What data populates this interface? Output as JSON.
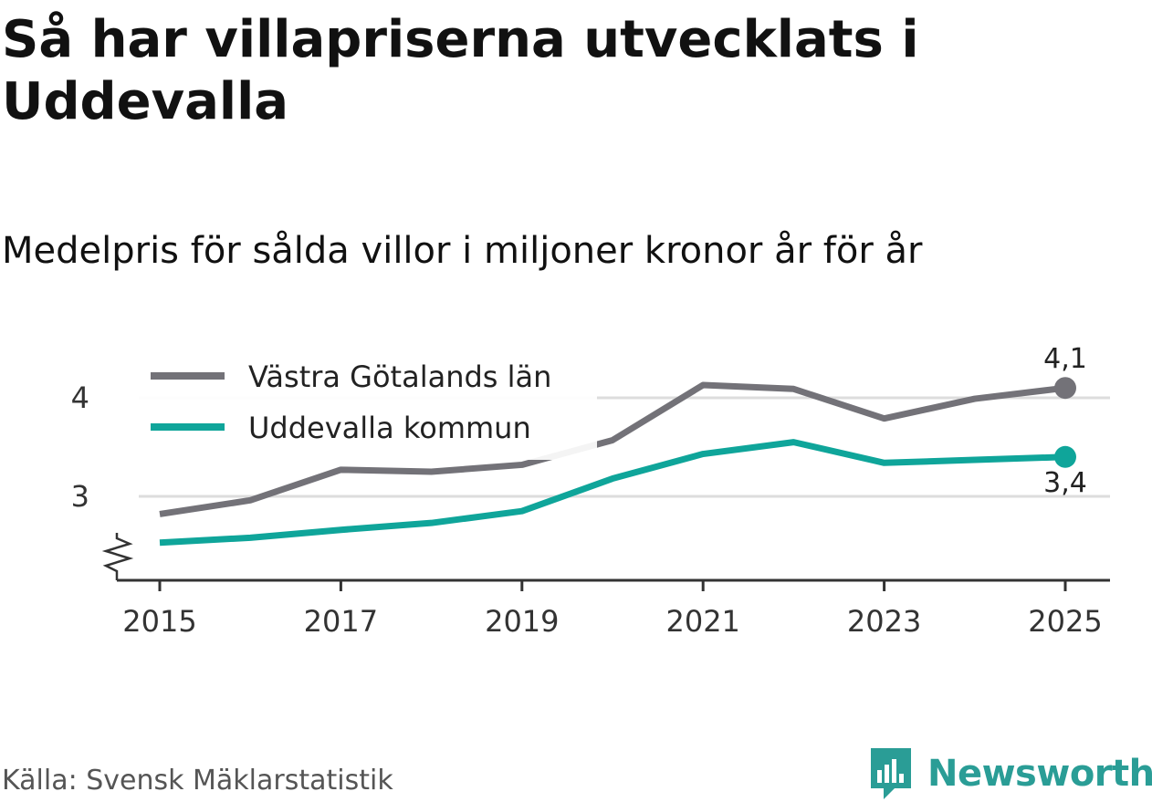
{
  "title": "Så har villapriserna utvecklats i Uddevalla",
  "subtitle": "Medelpris för sålda villor i miljoner kronor år för år",
  "source": "Källa: Svensk Mäklarstatistik",
  "brand": "Newsworthy",
  "colors": {
    "vg": "#737278",
    "udd": "#0fa59a",
    "brand": "#2a9d96",
    "grid": "#dddddd"
  },
  "chart_data": {
    "type": "line",
    "x": [
      2015,
      2016,
      2017,
      2018,
      2019,
      2020,
      2021,
      2022,
      2023,
      2024,
      2025
    ],
    "xticks": [
      2015,
      2017,
      2019,
      2021,
      2023,
      2025
    ],
    "xtick_labels": [
      "2015",
      "2017",
      "2019",
      "2021",
      "2023",
      "2025"
    ],
    "yticks": [
      3,
      4
    ],
    "ytick_labels": [
      "3",
      "4"
    ],
    "ylim": [
      2.2,
      4.3
    ],
    "xlim": [
      2014.75,
      2025.25
    ],
    "axis_break": true,
    "series": [
      {
        "name": "Västra Götalands län",
        "color": "#737278",
        "values": [
          2.82,
          2.96,
          3.27,
          3.25,
          3.32,
          3.57,
          4.13,
          4.09,
          3.79,
          3.99,
          4.1
        ],
        "end_label": "4,1"
      },
      {
        "name": "Uddevalla kommun",
        "color": "#0fa59a",
        "values": [
          2.53,
          2.58,
          2.66,
          2.73,
          2.85,
          3.18,
          3.43,
          3.55,
          3.34,
          3.37,
          3.4
        ],
        "end_label": "3,4"
      }
    ],
    "legend_position": "top-left"
  }
}
